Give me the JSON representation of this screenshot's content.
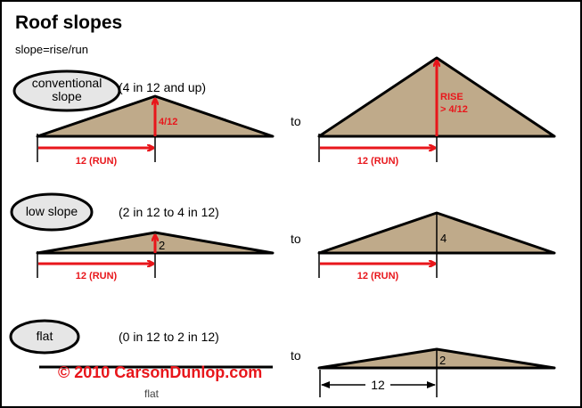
{
  "title": "Roof slopes",
  "formula": "slope=rise/run",
  "connector": "to",
  "colors": {
    "roof": "#bfaa8a",
    "arrow": "#e8161b",
    "ellipse": "#e6e6e6"
  },
  "rows": [
    {
      "category": "conventional",
      "category2": "slope",
      "range": "(4 in 12 and up)",
      "left_rise": "4/12",
      "run": "12 (RUN)",
      "right_rise": "RISE",
      "right_rise2": "> 4/12"
    },
    {
      "category": "low slope",
      "range": "(2 in 12 to 4 in 12)",
      "left_rise": "2",
      "run": "12 (RUN)",
      "right_rise": "4"
    },
    {
      "category": "flat",
      "range": "(0 in 12 to 2 in 12)",
      "left_label": "flat",
      "right_rise": "2",
      "right_run": "12"
    }
  ],
  "copyright": "© 2010 CarsonDunlop.com"
}
